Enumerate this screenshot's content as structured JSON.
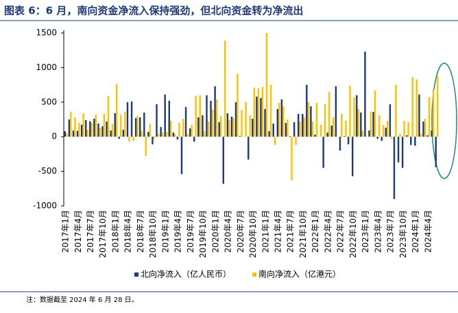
{
  "chart_data": {
    "type": "bar",
    "title": "图表 6：6 月，南向资金净流入保持强劲，但北向资金转为净流出",
    "note": "注：数据截至 2024 年 6 月 28 日。",
    "categories": [
      "2017年1月",
      null,
      null,
      "2017年4月",
      null,
      null,
      "2017年7月",
      null,
      null,
      "2017年10月",
      null,
      null,
      "2018年1月",
      null,
      null,
      "2018年4月",
      null,
      null,
      "2018年7月",
      null,
      null,
      "2018年10月",
      null,
      null,
      "2019年1月",
      null,
      null,
      "2019年4月",
      null,
      null,
      "2019年7月",
      null,
      null,
      "2019年10月",
      null,
      null,
      "2020年1月",
      null,
      null,
      "2020年4月",
      null,
      null,
      "2020年7月",
      null,
      null,
      "2020年10月",
      null,
      null,
      "2021年1月",
      null,
      null,
      "2021年4月",
      null,
      null,
      "2021年7月",
      null,
      null,
      "2021年10月",
      null,
      null,
      "2022年1月",
      null,
      null,
      "2022年4月",
      null,
      null,
      "2022年7月",
      null,
      null,
      "2022年10月",
      null,
      null,
      "2023年1月",
      null,
      null,
      "2023年4月",
      null,
      null,
      "2023年7月",
      null,
      null,
      "2023年10月",
      null,
      null,
      "2024年1月",
      null,
      null,
      "2024年4月",
      null,
      null
    ],
    "series": [
      {
        "name": "北向净流入（亿人民币）",
        "color": "#1f3a7a",
        "values": [
          80,
          250,
          90,
          85,
          175,
          240,
          225,
          260,
          190,
          150,
          220,
          90,
          340,
          -30,
          100,
          500,
          510,
          270,
          280,
          350,
          70,
          -110,
          470,
          140,
          610,
          520,
          60,
          -40,
          -540,
          430,
          120,
          -70,
          280,
          310,
          600,
          520,
          730,
          210,
          -680,
          340,
          290,
          500,
          10,
          0,
          -330,
          260,
          580,
          560,
          400,
          80,
          190,
          400,
          540,
          200,
          10,
          210,
          330,
          330,
          750,
          440,
          30,
          0,
          -450,
          60,
          160,
          730,
          -200,
          10,
          -110,
          -570,
          600,
          350,
          1230,
          90,
          360,
          -30,
          -60,
          130,
          470,
          -900,
          -370,
          -450,
          20,
          -120,
          -130,
          610,
          220,
          20,
          90,
          -440
        ]
      },
      {
        "name": "南向净流入（亿港元）",
        "color": "#ffc000",
        "values": [
          50,
          360,
          280,
          200,
          340,
          100,
          200,
          320,
          130,
          330,
          590,
          180,
          760,
          320,
          360,
          -70,
          -60,
          300,
          80,
          -280,
          180,
          -30,
          40,
          60,
          70,
          230,
          40,
          200,
          260,
          40,
          170,
          590,
          600,
          80,
          220,
          390,
          540,
          300,
          1390,
          240,
          270,
          910,
          390,
          500,
          310,
          710,
          700,
          720,
          1500,
          750,
          -120,
          490,
          440,
          250,
          -630,
          -120,
          220,
          280,
          500,
          220,
          490,
          170,
          470,
          650,
          280,
          0,
          330,
          230,
          740,
          570,
          400,
          90,
          0,
          360,
          670,
          310,
          170,
          230,
          -30,
          750,
          40,
          230,
          210,
          860,
          830,
          40,
          260,
          570,
          690,
          880
        ]
      }
    ],
    "ylim": [
      -1000,
      1500
    ],
    "yticks": [
      -1000,
      -500,
      0,
      500,
      1000,
      1500
    ],
    "grid": false,
    "legend": "bottom"
  }
}
